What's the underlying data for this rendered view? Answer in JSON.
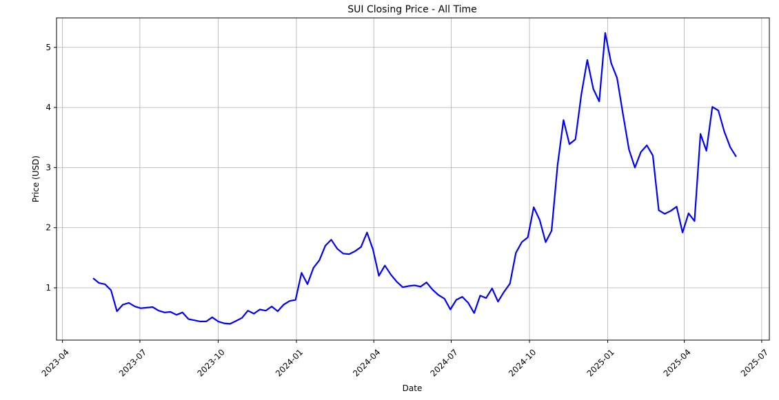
{
  "chart_data": {
    "type": "line",
    "title": "SUI Closing Price - All Time",
    "xlabel": "Date",
    "ylabel": "Price (USD)",
    "grid": true,
    "line_color": "#0000ff",
    "x_ticks": [
      "2023-04",
      "2023-07",
      "2023-10",
      "2024-01",
      "2024-04",
      "2024-07",
      "2024-10",
      "2025-01",
      "2025-04",
      "2025-07"
    ],
    "y_ticks": [
      1,
      2,
      3,
      4,
      5
    ],
    "xlim": [
      "2023-03-25",
      "2025-07-10"
    ],
    "ylim": [
      0.13,
      5.49
    ],
    "series": [
      {
        "x": [
          "2023-05-07",
          "2023-05-14",
          "2023-05-21",
          "2023-05-28",
          "2023-06-04",
          "2023-06-11",
          "2023-06-18",
          "2023-06-25",
          "2023-07-02",
          "2023-07-09",
          "2023-07-16",
          "2023-07-23",
          "2023-07-30",
          "2023-08-06",
          "2023-08-13",
          "2023-08-20",
          "2023-08-27",
          "2023-09-03",
          "2023-09-10",
          "2023-09-17",
          "2023-09-24",
          "2023-10-01",
          "2023-10-08",
          "2023-10-15",
          "2023-10-22",
          "2023-10-29",
          "2023-11-05",
          "2023-11-12",
          "2023-11-19",
          "2023-11-26",
          "2023-12-03",
          "2023-12-10",
          "2023-12-17",
          "2023-12-24",
          "2023-12-31",
          "2024-01-07",
          "2024-01-14",
          "2024-01-21",
          "2024-01-28",
          "2024-02-04",
          "2024-02-11",
          "2024-02-18",
          "2024-02-25",
          "2024-03-03",
          "2024-03-10",
          "2024-03-17",
          "2024-03-24",
          "2024-03-31",
          "2024-04-07",
          "2024-04-14",
          "2024-04-21",
          "2024-04-28",
          "2024-05-05",
          "2024-05-12",
          "2024-05-19",
          "2024-05-26",
          "2024-06-02",
          "2024-06-09",
          "2024-06-16",
          "2024-06-23",
          "2024-06-30",
          "2024-07-07",
          "2024-07-14",
          "2024-07-21",
          "2024-07-28",
          "2024-08-04",
          "2024-08-11",
          "2024-08-18",
          "2024-08-25",
          "2024-09-01",
          "2024-09-08",
          "2024-09-15",
          "2024-09-22",
          "2024-09-29",
          "2024-10-06",
          "2024-10-13",
          "2024-10-20",
          "2024-10-27",
          "2024-11-03",
          "2024-11-10",
          "2024-11-17",
          "2024-11-24",
          "2024-12-01",
          "2024-12-08",
          "2024-12-15",
          "2024-12-22",
          "2024-12-29",
          "2025-01-05",
          "2025-01-12",
          "2025-01-19",
          "2025-01-26",
          "2025-02-02",
          "2025-02-09",
          "2025-02-16",
          "2025-02-23",
          "2025-03-02",
          "2025-03-09",
          "2025-03-16",
          "2025-03-23",
          "2025-03-30",
          "2025-04-06",
          "2025-04-13",
          "2025-04-20",
          "2025-04-27",
          "2025-05-04",
          "2025-05-11",
          "2025-05-18",
          "2025-05-25",
          "2025-06-01"
        ],
        "y": [
          1.16,
          1.08,
          1.06,
          0.96,
          0.61,
          0.72,
          0.75,
          0.69,
          0.66,
          0.67,
          0.68,
          0.62,
          0.59,
          0.6,
          0.55,
          0.59,
          0.48,
          0.46,
          0.44,
          0.44,
          0.51,
          0.44,
          0.41,
          0.4,
          0.45,
          0.5,
          0.62,
          0.57,
          0.64,
          0.62,
          0.69,
          0.61,
          0.72,
          0.78,
          0.8,
          1.25,
          1.06,
          1.33,
          1.46,
          1.7,
          1.8,
          1.65,
          1.57,
          1.56,
          1.61,
          1.68,
          1.92,
          1.64,
          1.2,
          1.37,
          1.22,
          1.1,
          1.01,
          1.03,
          1.04,
          1.02,
          1.09,
          0.97,
          0.88,
          0.82,
          0.64,
          0.8,
          0.85,
          0.75,
          0.58,
          0.87,
          0.83,
          0.99,
          0.77,
          0.93,
          1.07,
          1.58,
          1.76,
          1.84,
          2.34,
          2.13,
          1.76,
          1.95,
          3.04,
          3.79,
          3.39,
          3.47,
          4.22,
          4.79,
          4.31,
          4.1,
          5.24,
          4.74,
          4.49,
          3.88,
          3.3,
          3.0,
          3.26,
          3.37,
          3.2,
          2.29,
          2.23,
          2.28,
          2.35,
          1.92,
          2.24,
          2.11,
          3.56,
          3.28,
          4.01,
          3.95,
          3.6,
          3.34,
          3.18
        ]
      }
    ]
  }
}
